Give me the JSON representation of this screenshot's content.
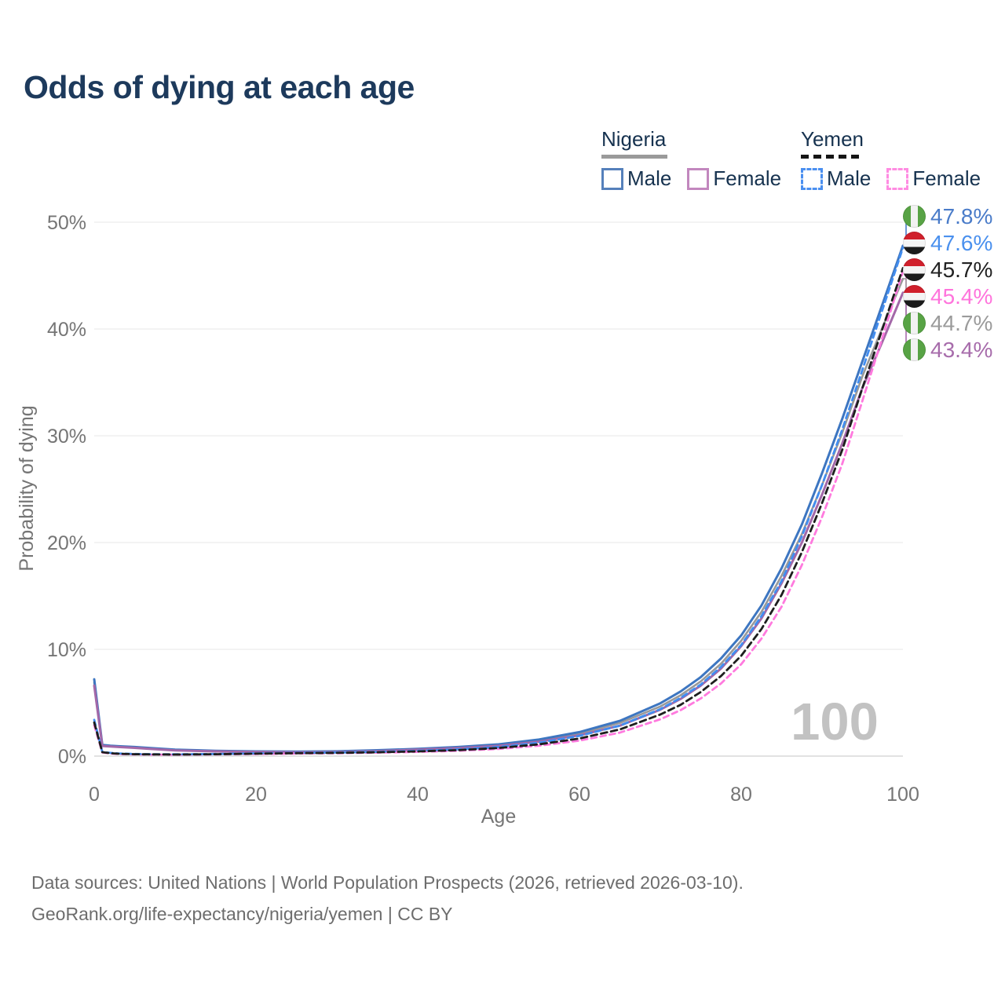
{
  "title": "Odds of dying at each age",
  "legend": {
    "groups": [
      {
        "country": "Nigeria",
        "line_style": "solid",
        "items": [
          {
            "label": "Male",
            "color": "#5580bb"
          },
          {
            "label": "Female",
            "color": "#c287be"
          }
        ]
      },
      {
        "country": "Yemen",
        "line_style": "dashed",
        "items": [
          {
            "label": "Male",
            "color": "#4a8ff0"
          },
          {
            "label": "Female",
            "color": "#ff8ce2"
          }
        ]
      }
    ]
  },
  "axis": {
    "x_label": "Age",
    "y_label": "Probability of dying"
  },
  "watermark_hovered_age": "100",
  "source": {
    "line1": "Data sources: United Nations | World Population Prospects (2026, retrieved 2026-03-10).",
    "line2": "GeoRank.org/life-expectancy/nigeria/yemen | CC BY"
  },
  "end_labels": [
    {
      "value": "47.8%",
      "p": 47.8,
      "flag": "nigeria",
      "color": "#4a7cc9"
    },
    {
      "value": "47.6%",
      "p": 47.6,
      "flag": "yemen",
      "color": "#4a90ee"
    },
    {
      "value": "45.7%",
      "p": 45.7,
      "flag": "yemen",
      "color": "#222222"
    },
    {
      "value": "45.4%",
      "p": 45.4,
      "flag": "yemen",
      "color": "#ff74dc"
    },
    {
      "value": "44.7%",
      "p": 44.7,
      "flag": "nigeria",
      "color": "#9b9b9b"
    },
    {
      "value": "43.4%",
      "p": 43.4,
      "flag": "nigeria",
      "color": "#a76cab"
    }
  ],
  "chart_data": {
    "type": "line",
    "title": "Odds of dying at each age",
    "xlabel": "Age",
    "ylabel": "Probability of dying",
    "xlim": [
      0,
      100
    ],
    "ylim": [
      0,
      50
    ],
    "grid": "horizontal",
    "x_ticks": [
      {
        "v": 0,
        "label": "0"
      },
      {
        "v": 20,
        "label": "20"
      },
      {
        "v": 40,
        "label": "40"
      },
      {
        "v": 60,
        "label": "60"
      },
      {
        "v": 80,
        "label": "80"
      },
      {
        "v": 100,
        "label": "100"
      }
    ],
    "y_ticks": [
      {
        "v": 0,
        "label": "0%"
      },
      {
        "v": 10,
        "label": "10%"
      },
      {
        "v": 20,
        "label": "20%"
      },
      {
        "v": 30,
        "label": "30%"
      },
      {
        "v": 40,
        "label": "40%"
      },
      {
        "v": 50,
        "label": "50%"
      }
    ],
    "series": [
      {
        "id": "nigeria-all",
        "name": "Nigeria",
        "color": "#999999",
        "dash": "",
        "width": 2.6,
        "points": [
          [
            0,
            6.9
          ],
          [
            1,
            1.0
          ],
          [
            2,
            0.94
          ],
          [
            3,
            0.89
          ],
          [
            5,
            0.81
          ],
          [
            7,
            0.71
          ],
          [
            10,
            0.57
          ],
          [
            15,
            0.47
          ],
          [
            20,
            0.41
          ],
          [
            25,
            0.39
          ],
          [
            30,
            0.42
          ],
          [
            35,
            0.51
          ],
          [
            40,
            0.64
          ],
          [
            45,
            0.8
          ],
          [
            50,
            1.03
          ],
          [
            55,
            1.45
          ],
          [
            60,
            2.1
          ],
          [
            65,
            3.1
          ],
          [
            70,
            4.65
          ],
          [
            72.5,
            5.7
          ],
          [
            75,
            7.0
          ],
          [
            77.5,
            8.65
          ],
          [
            80,
            10.8
          ],
          [
            82.5,
            13.5
          ],
          [
            85,
            16.9
          ],
          [
            87.5,
            20.8
          ],
          [
            90,
            25.4
          ],
          [
            92.5,
            30.3
          ],
          [
            95,
            35.6
          ],
          [
            97.5,
            40.2
          ],
          [
            100,
            44.7
          ]
        ]
      },
      {
        "id": "nigeria-male",
        "name": "Nigeria Male",
        "color": "#3d76c1",
        "dash": "",
        "width": 3,
        "points": [
          [
            0,
            7.2
          ],
          [
            1,
            1.05
          ],
          [
            2,
            0.98
          ],
          [
            3,
            0.93
          ],
          [
            5,
            0.85
          ],
          [
            7,
            0.75
          ],
          [
            10,
            0.6
          ],
          [
            15,
            0.5
          ],
          [
            20,
            0.44
          ],
          [
            25,
            0.42
          ],
          [
            30,
            0.45
          ],
          [
            35,
            0.55
          ],
          [
            40,
            0.68
          ],
          [
            45,
            0.85
          ],
          [
            50,
            1.1
          ],
          [
            55,
            1.55
          ],
          [
            60,
            2.25
          ],
          [
            65,
            3.3
          ],
          [
            70,
            4.95
          ],
          [
            72.5,
            6.05
          ],
          [
            75,
            7.4
          ],
          [
            77.5,
            9.15
          ],
          [
            80,
            11.3
          ],
          [
            82.5,
            14.1
          ],
          [
            85,
            17.6
          ],
          [
            87.5,
            21.7
          ],
          [
            90,
            26.5
          ],
          [
            92.5,
            31.6
          ],
          [
            95,
            37.0
          ],
          [
            97.5,
            42.4
          ],
          [
            100,
            47.8
          ]
        ]
      },
      {
        "id": "nigeria-female",
        "name": "Nigeria Female",
        "color": "#a368a8",
        "dash": "",
        "width": 3,
        "points": [
          [
            0,
            6.6
          ],
          [
            1,
            0.95
          ],
          [
            2,
            0.9
          ],
          [
            3,
            0.85
          ],
          [
            5,
            0.77
          ],
          [
            7,
            0.67
          ],
          [
            10,
            0.54
          ],
          [
            15,
            0.44
          ],
          [
            20,
            0.38
          ],
          [
            25,
            0.36
          ],
          [
            30,
            0.39
          ],
          [
            35,
            0.47
          ],
          [
            40,
            0.6
          ],
          [
            45,
            0.75
          ],
          [
            50,
            0.96
          ],
          [
            55,
            1.35
          ],
          [
            60,
            1.95
          ],
          [
            65,
            2.85
          ],
          [
            70,
            4.35
          ],
          [
            72.5,
            5.35
          ],
          [
            75,
            6.6
          ],
          [
            77.5,
            8.2
          ],
          [
            80,
            10.3
          ],
          [
            82.5,
            12.9
          ],
          [
            85,
            16.2
          ],
          [
            87.5,
            20.0
          ],
          [
            90,
            24.5
          ],
          [
            92.5,
            29.3
          ],
          [
            95,
            34.5
          ],
          [
            97.5,
            38.9
          ],
          [
            100,
            43.4
          ]
        ]
      },
      {
        "id": "yemen-female",
        "name": "Yemen Female",
        "color": "#ff7ade",
        "dash": "7 5",
        "width": 2.8,
        "points": [
          [
            0,
            2.9
          ],
          [
            1,
            0.34
          ],
          [
            2,
            0.24
          ],
          [
            3,
            0.19
          ],
          [
            5,
            0.16
          ],
          [
            7,
            0.14
          ],
          [
            10,
            0.13
          ],
          [
            15,
            0.16
          ],
          [
            20,
            0.2
          ],
          [
            25,
            0.24
          ],
          [
            30,
            0.27
          ],
          [
            35,
            0.32
          ],
          [
            40,
            0.4
          ],
          [
            45,
            0.5
          ],
          [
            50,
            0.68
          ],
          [
            55,
            0.98
          ],
          [
            60,
            1.45
          ],
          [
            65,
            2.2
          ],
          [
            70,
            3.45
          ],
          [
            72.5,
            4.3
          ],
          [
            75,
            5.4
          ],
          [
            77.5,
            6.8
          ],
          [
            80,
            8.6
          ],
          [
            82.5,
            11.0
          ],
          [
            85,
            14.0
          ],
          [
            87.5,
            17.9
          ],
          [
            90,
            22.4
          ],
          [
            92.5,
            27.4
          ],
          [
            95,
            33.3
          ],
          [
            97.5,
            39.3
          ],
          [
            100,
            45.4
          ]
        ]
      },
      {
        "id": "yemen-male",
        "name": "Yemen Male",
        "color": "#418df0",
        "dash": "7 5",
        "width": 2.8,
        "points": [
          [
            0,
            3.4
          ],
          [
            1,
            0.4
          ],
          [
            2,
            0.3
          ],
          [
            3,
            0.25
          ],
          [
            5,
            0.2
          ],
          [
            7,
            0.18
          ],
          [
            10,
            0.17
          ],
          [
            15,
            0.2
          ],
          [
            20,
            0.26
          ],
          [
            25,
            0.3
          ],
          [
            30,
            0.34
          ],
          [
            35,
            0.4
          ],
          [
            40,
            0.5
          ],
          [
            45,
            0.63
          ],
          [
            50,
            0.85
          ],
          [
            55,
            1.25
          ],
          [
            60,
            1.9
          ],
          [
            65,
            2.85
          ],
          [
            70,
            4.4
          ],
          [
            72.5,
            5.45
          ],
          [
            75,
            6.7
          ],
          [
            77.5,
            8.35
          ],
          [
            80,
            10.4
          ],
          [
            82.5,
            13.1
          ],
          [
            85,
            16.4
          ],
          [
            87.5,
            20.6
          ],
          [
            90,
            25.4
          ],
          [
            92.5,
            30.6
          ],
          [
            95,
            36.2
          ],
          [
            97.5,
            41.9
          ],
          [
            100,
            47.6
          ]
        ]
      },
      {
        "id": "yemen-all",
        "name": "Yemen",
        "color": "#1e1e1e",
        "dash": "8 5",
        "width": 2.8,
        "points": [
          [
            0,
            3.15
          ],
          [
            1,
            0.37
          ],
          [
            2,
            0.27
          ],
          [
            3,
            0.22
          ],
          [
            5,
            0.18
          ],
          [
            7,
            0.16
          ],
          [
            10,
            0.15
          ],
          [
            15,
            0.18
          ],
          [
            20,
            0.23
          ],
          [
            25,
            0.27
          ],
          [
            30,
            0.3
          ],
          [
            35,
            0.36
          ],
          [
            40,
            0.44
          ],
          [
            45,
            0.56
          ],
          [
            50,
            0.76
          ],
          [
            55,
            1.1
          ],
          [
            60,
            1.65
          ],
          [
            65,
            2.5
          ],
          [
            70,
            3.9
          ],
          [
            72.5,
            4.8
          ],
          [
            75,
            6.0
          ],
          [
            77.5,
            7.5
          ],
          [
            80,
            9.4
          ],
          [
            82.5,
            11.9
          ],
          [
            85,
            15.1
          ],
          [
            87.5,
            19.1
          ],
          [
            90,
            23.7
          ],
          [
            92.5,
            28.7
          ],
          [
            95,
            34.5
          ],
          [
            97.5,
            40.1
          ],
          [
            100,
            45.7
          ]
        ]
      }
    ]
  }
}
